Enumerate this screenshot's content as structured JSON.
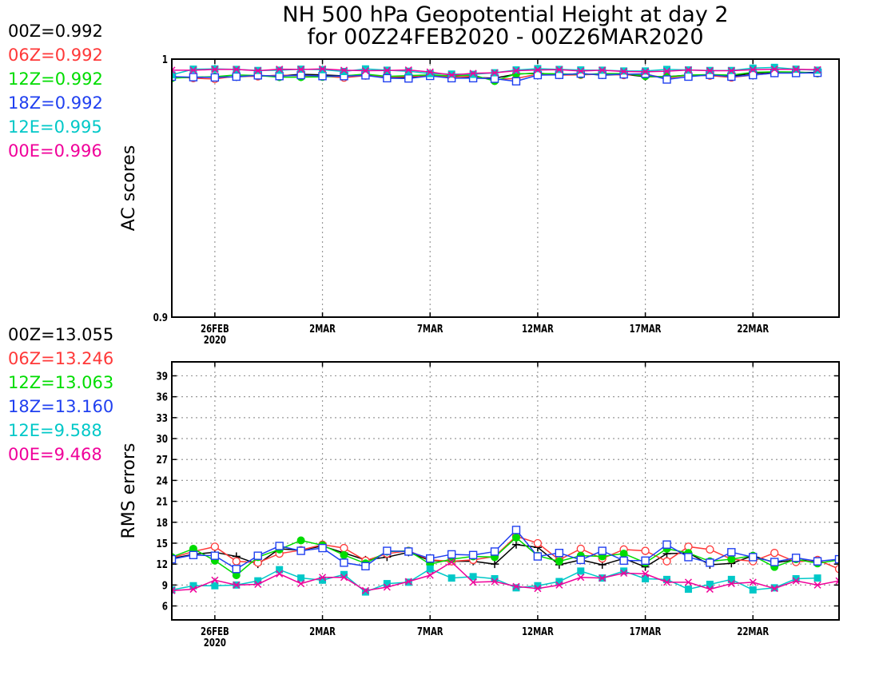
{
  "title": {
    "line1": "NH 500 hPa Geopotential Height at day 2",
    "line2": "for 00Z24FEB2020 - 00Z26MAR2020"
  },
  "colors": {
    "00Z": "#000000",
    "06Z": "#ff3838",
    "12Z": "#00dc00",
    "18Z": "#2040f0",
    "12E": "#00c8c8",
    "00E": "#f0009a"
  },
  "ac_legend": [
    {
      "key": "00Z",
      "label": "00Z=0.992"
    },
    {
      "key": "06Z",
      "label": "06Z=0.992"
    },
    {
      "key": "12Z",
      "label": "12Z=0.992"
    },
    {
      "key": "18Z",
      "label": "18Z=0.992"
    },
    {
      "key": "12E",
      "label": "12E=0.995"
    },
    {
      "key": "00E",
      "label": "00E=0.996"
    }
  ],
  "rms_legend": [
    {
      "key": "00Z",
      "label": "00Z=13.055"
    },
    {
      "key": "06Z",
      "label": "06Z=13.246"
    },
    {
      "key": "12Z",
      "label": "12Z=13.063"
    },
    {
      "key": "18Z",
      "label": "18Z=13.160"
    },
    {
      "key": "12E",
      "label": "12E=9.588"
    },
    {
      "key": "00E",
      "label": "00E=9.468"
    }
  ],
  "chart_data": [
    {
      "type": "line",
      "ylabel": "AC scores",
      "ylim": [
        0.9,
        1.0
      ],
      "yticks": [
        {
          "value": 0.9,
          "label": "0.9"
        },
        {
          "value": 1.0,
          "label": "1"
        }
      ],
      "xticks": [
        {
          "day": 2,
          "label": "26FEB",
          "sublabel": "2020"
        },
        {
          "day": 7,
          "label": "2MAR"
        },
        {
          "day": 12,
          "label": "7MAR"
        },
        {
          "day": 17,
          "label": "12MAR"
        },
        {
          "day": 22,
          "label": "17MAR"
        },
        {
          "day": 27,
          "label": "22MAR"
        }
      ],
      "x_start": "24FEB2020",
      "x_end": "26MAR2020",
      "grid": true,
      "series": [
        {
          "name": "00Z",
          "marker": "plus",
          "values": [
            0.9928,
            0.9929,
            0.993,
            0.9931,
            0.9936,
            0.9935,
            0.9941,
            0.9939,
            0.9935,
            0.994,
            0.9927,
            0.9928,
            0.9935,
            0.9932,
            0.9929,
            0.9926,
            0.9942,
            0.9946,
            0.9939,
            0.9944,
            0.9938,
            0.9941,
            0.9932,
            0.9932,
            0.9938,
            0.9936,
            0.9934,
            0.9945,
            0.9949,
            0.9949,
            0.9948
          ]
        },
        {
          "name": "06Z",
          "marker": "circle",
          "values": [
            0.9933,
            0.9926,
            0.9923,
            0.9934,
            0.9933,
            0.9938,
            0.9935,
            0.9934,
            0.9928,
            0.9936,
            0.9932,
            0.9932,
            0.9937,
            0.993,
            0.9933,
            0.9921,
            0.9925,
            0.9942,
            0.9938,
            0.9939,
            0.9942,
            0.9938,
            0.9941,
            0.9926,
            0.9938,
            0.9936,
            0.9929,
            0.9938,
            0.9946,
            0.9949,
            0.9945
          ]
        },
        {
          "name": "12Z",
          "marker": "dot",
          "values": [
            0.9926,
            0.993,
            0.9932,
            0.9939,
            0.9936,
            0.993,
            0.993,
            0.9931,
            0.9935,
            0.9942,
            0.9933,
            0.9936,
            0.9939,
            0.9935,
            0.9938,
            0.9915,
            0.9943,
            0.9944,
            0.9943,
            0.994,
            0.9944,
            0.9944,
            0.9934,
            0.9931,
            0.9938,
            0.994,
            0.9938,
            0.9949,
            0.9951,
            0.995,
            0.9945
          ]
        },
        {
          "name": "18Z",
          "marker": "square",
          "values": [
            0.9932,
            0.993,
            0.9929,
            0.9932,
            0.9937,
            0.9934,
            0.9938,
            0.9934,
            0.9934,
            0.9937,
            0.9926,
            0.9925,
            0.9935,
            0.9926,
            0.9926,
            0.9924,
            0.9914,
            0.9938,
            0.9939,
            0.9944,
            0.9939,
            0.9941,
            0.9943,
            0.9921,
            0.9932,
            0.9939,
            0.9932,
            0.9938,
            0.9946,
            0.9946,
            0.9947
          ]
        },
        {
          "name": "12E",
          "marker": "filled-square",
          "values": [
            0.9939,
            0.9961,
            0.9962,
            0.996,
            0.9956,
            0.9957,
            0.9961,
            0.9959,
            0.9952,
            0.9962,
            0.9957,
            0.9953,
            0.9944,
            0.9942,
            0.9941,
            0.9947,
            0.9958,
            0.9963,
            0.996,
            0.9958,
            0.9957,
            0.9954,
            0.9954,
            0.996,
            0.9958,
            0.9956,
            0.9956,
            0.9965,
            0.9968,
            0.9961,
            0.9957
          ]
        },
        {
          "name": "00E",
          "marker": "cross",
          "values": [
            0.9957,
            0.9957,
            0.996,
            0.996,
            0.9955,
            0.9961,
            0.996,
            0.9962,
            0.9957,
            0.9955,
            0.9956,
            0.9958,
            0.995,
            0.9938,
            0.9945,
            0.9947,
            0.9955,
            0.9958,
            0.9959,
            0.9954,
            0.9957,
            0.9952,
            0.9951,
            0.9953,
            0.9958,
            0.9955,
            0.9955,
            0.9959,
            0.9961,
            0.996,
            0.9959
          ]
        }
      ]
    },
    {
      "type": "line",
      "ylabel": "RMS errors",
      "ylim": [
        4,
        41
      ],
      "yticks": [
        {
          "value": 6,
          "label": "6"
        },
        {
          "value": 9,
          "label": "9"
        },
        {
          "value": 12,
          "label": "12"
        },
        {
          "value": 15,
          "label": "15"
        },
        {
          "value": 18,
          "label": "18"
        },
        {
          "value": 21,
          "label": "21"
        },
        {
          "value": 24,
          "label": "24"
        },
        {
          "value": 27,
          "label": "27"
        },
        {
          "value": 30,
          "label": "30"
        },
        {
          "value": 33,
          "label": "33"
        },
        {
          "value": 36,
          "label": "36"
        },
        {
          "value": 39,
          "label": "39"
        }
      ],
      "xticks": [
        {
          "day": 2,
          "label": "26FEB",
          "sublabel": "2020"
        },
        {
          "day": 7,
          "label": "2MAR"
        },
        {
          "day": 12,
          "label": "7MAR"
        },
        {
          "day": 17,
          "label": "12MAR"
        },
        {
          "day": 22,
          "label": "17MAR"
        },
        {
          "day": 27,
          "label": "22MAR"
        }
      ],
      "x_start": "24FEB2020",
      "x_end": "26MAR2020",
      "grid": true,
      "series": [
        {
          "name": "00Z",
          "marker": "plus",
          "values": [
            12.8,
            13.4,
            13.7,
            13.1,
            12.0,
            14.2,
            14.0,
            14.6,
            13.6,
            12.6,
            13.0,
            13.7,
            12.5,
            12.4,
            12.4,
            12.0,
            14.8,
            14.4,
            11.9,
            12.6,
            11.9,
            12.8,
            11.6,
            13.5,
            13.6,
            11.9,
            12.1,
            13.2,
            12.2,
            12.6,
            12.4
          ]
        },
        {
          "name": "06Z",
          "marker": "circle",
          "values": [
            12.9,
            13.8,
            14.5,
            12.4,
            12.2,
            13.5,
            14.0,
            14.8,
            14.3,
            12.5,
            13.5,
            13.9,
            12.6,
            12.4,
            12.6,
            13.1,
            16.0,
            15.0,
            12.6,
            14.2,
            12.8,
            14.1,
            13.9,
            12.4,
            14.5,
            14.1,
            12.7,
            12.4,
            13.6,
            12.3,
            12.6,
            11.3
          ]
        },
        {
          "name": "12Z",
          "marker": "dot",
          "values": [
            13.0,
            14.2,
            12.5,
            10.4,
            13.0,
            14.1,
            15.4,
            14.7,
            13.3,
            12.1,
            13.8,
            13.9,
            12.0,
            12.7,
            13.1,
            13.0,
            15.8,
            13.2,
            12.4,
            13.2,
            13.1,
            13.5,
            12.2,
            14.2,
            13.6,
            12.4,
            12.7,
            13.2,
            11.6,
            12.7,
            12.1,
            12.6
          ]
        },
        {
          "name": "18Z",
          "marker": "square",
          "values": [
            12.7,
            13.3,
            13.2,
            11.3,
            13.2,
            14.6,
            13.9,
            14.3,
            12.2,
            11.7,
            13.9,
            13.8,
            12.8,
            13.4,
            13.3,
            13.8,
            16.9,
            13.1,
            13.6,
            12.6,
            13.9,
            12.5,
            12.5,
            14.8,
            13.0,
            12.2,
            13.7,
            13.0,
            12.3,
            12.9,
            12.4,
            12.7
          ]
        },
        {
          "name": "12E",
          "marker": "filled-square",
          "values": [
            8.3,
            8.9,
            8.9,
            9.0,
            9.6,
            11.2,
            10.0,
            9.7,
            10.5,
            8.0,
            9.2,
            9.4,
            11.3,
            10.0,
            10.2,
            9.9,
            8.6,
            8.9,
            9.5,
            11.0,
            10.0,
            11.0,
            9.9,
            9.8,
            8.4,
            9.1,
            9.8,
            8.3,
            8.6,
            9.9,
            10.0
          ]
        },
        {
          "name": "00E",
          "marker": "cross",
          "values": [
            8.2,
            8.4,
            9.7,
            9.0,
            9.1,
            10.6,
            9.2,
            10.1,
            10.1,
            8.2,
            8.7,
            9.5,
            10.4,
            12.3,
            9.4,
            9.5,
            8.8,
            8.5,
            9.0,
            10.1,
            10.0,
            10.7,
            10.6,
            9.4,
            9.4,
            8.4,
            9.2,
            9.4,
            8.5,
            9.6,
            9.0,
            9.6
          ]
        }
      ]
    }
  ]
}
